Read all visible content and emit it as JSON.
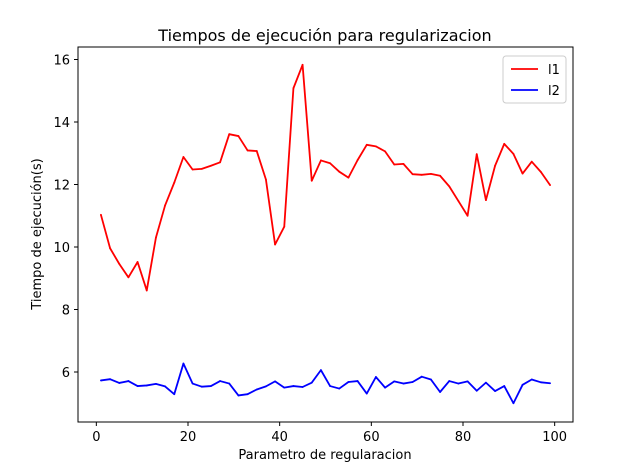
{
  "chart_data": {
    "type": "line",
    "title": "Tiempos de ejecución para regularizacion",
    "xlabel": "Parametro de regularacion",
    "ylabel": "Tiempo de ejecución(s)",
    "xlim": [
      -4.0,
      104.0
    ],
    "ylim": [
      4.4,
      16.4
    ],
    "xticks": [
      0,
      20,
      40,
      60,
      80,
      100
    ],
    "yticks": [
      6,
      8,
      10,
      12,
      14,
      16
    ],
    "grid": false,
    "legend_position": "top-right",
    "x": [
      1,
      3,
      5,
      7,
      9,
      11,
      13,
      15,
      17,
      19,
      21,
      23,
      25,
      27,
      29,
      31,
      33,
      35,
      37,
      39,
      41,
      43,
      45,
      47,
      49,
      51,
      53,
      55,
      57,
      59,
      61,
      63,
      65,
      67,
      69,
      71,
      73,
      75,
      77,
      79,
      81,
      83,
      85,
      87,
      89,
      91,
      93,
      95,
      97,
      99
    ],
    "series": [
      {
        "name": "l1",
        "color": "#ff0000",
        "values": [
          11.03,
          9.96,
          9.46,
          9.03,
          9.52,
          8.61,
          10.3,
          11.33,
          12.06,
          12.88,
          12.48,
          12.5,
          12.6,
          12.71,
          13.61,
          13.55,
          13.09,
          13.07,
          12.16,
          10.08,
          10.65,
          15.08,
          15.83,
          12.12,
          12.77,
          12.68,
          12.41,
          12.22,
          12.78,
          13.27,
          13.22,
          13.06,
          12.64,
          12.66,
          12.33,
          12.31,
          12.34,
          12.28,
          11.94,
          11.47,
          11.0,
          12.97,
          11.5,
          12.6,
          13.3,
          12.98,
          12.35,
          12.73,
          12.4,
          11.98
        ]
      },
      {
        "name": "l2",
        "color": "#0000ff",
        "values": [
          5.73,
          5.77,
          5.65,
          5.71,
          5.55,
          5.57,
          5.62,
          5.54,
          5.29,
          6.27,
          5.63,
          5.53,
          5.55,
          5.71,
          5.63,
          5.25,
          5.29,
          5.44,
          5.54,
          5.7,
          5.5,
          5.55,
          5.52,
          5.66,
          6.06,
          5.55,
          5.47,
          5.68,
          5.71,
          5.31,
          5.84,
          5.5,
          5.7,
          5.63,
          5.68,
          5.85,
          5.76,
          5.36,
          5.71,
          5.63,
          5.7,
          5.4,
          5.66,
          5.39,
          5.55,
          5.0,
          5.59,
          5.76,
          5.67,
          5.64
        ]
      }
    ]
  }
}
